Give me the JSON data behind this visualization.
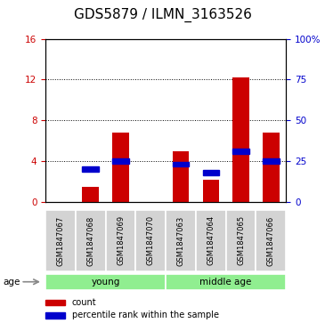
{
  "title": "GDS5879 / ILMN_3163526",
  "samples": [
    "GSM1847067",
    "GSM1847068",
    "GSM1847069",
    "GSM1847070",
    "GSM1847063",
    "GSM1847064",
    "GSM1847065",
    "GSM1847066"
  ],
  "count_values": [
    0,
    1.5,
    6.8,
    0,
    5.0,
    2.2,
    12.2,
    6.8
  ],
  "percentile_values": [
    0,
    20,
    25,
    0,
    23,
    18,
    31,
    25
  ],
  "left_yaxis_color": "#cc0000",
  "right_yaxis_color": "#0000cc",
  "bar_color": "#cc0000",
  "percentile_color": "#0000cc",
  "ylim_left": [
    0,
    16
  ],
  "ylim_right": [
    0,
    100
  ],
  "yticks_left": [
    0,
    4,
    8,
    12,
    16
  ],
  "yticks_right": [
    0,
    25,
    50,
    75,
    100
  ],
  "ytick_labels_right": [
    "0",
    "25",
    "50",
    "75",
    "100%"
  ],
  "bar_width": 0.55,
  "bg_color": "#d3d3d3",
  "plot_bg": "#ffffff",
  "grid_color": "#000000",
  "title_fontsize": 11,
  "tick_fontsize": 7.5,
  "age_label": "age",
  "legend_count": "count",
  "legend_percentile": "percentile rank within the sample"
}
